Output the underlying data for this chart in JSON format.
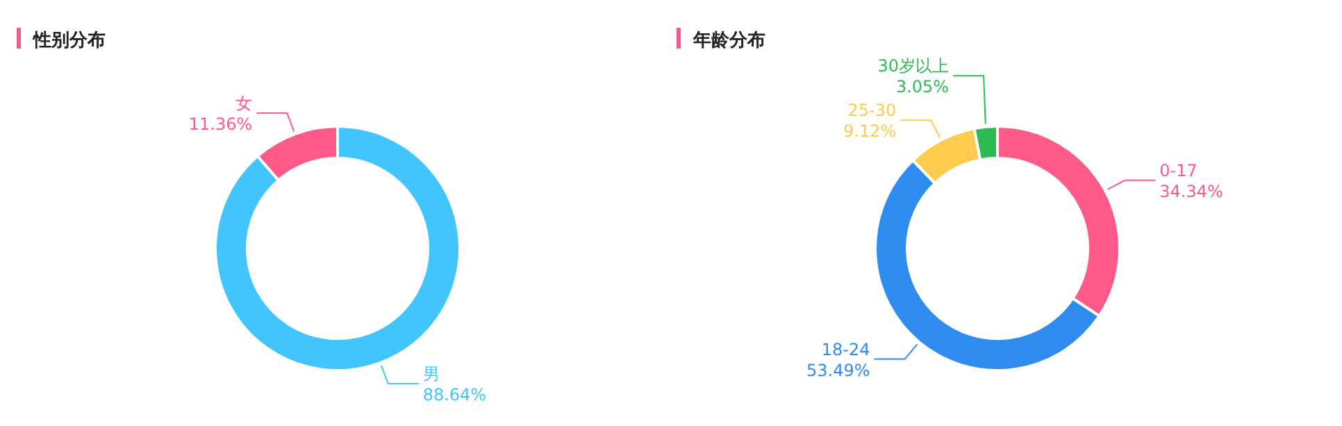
{
  "chart_data": [
    {
      "type": "donut",
      "title": "性别分布",
      "categories": [
        "男",
        "女"
      ],
      "values": [
        88.64,
        11.36
      ],
      "colors": [
        "#42c5fd",
        "#fe5a87"
      ],
      "value_labels": [
        "88.64%",
        "11.36%"
      ]
    },
    {
      "type": "donut",
      "title": "年龄分布",
      "categories": [
        "0-17",
        "18-24",
        "25-30",
        "30岁以上"
      ],
      "values": [
        34.34,
        53.49,
        9.12,
        3.05
      ],
      "colors": [
        "#fe5a87",
        "#2e8cf0",
        "#fecb4e",
        "#2dbb53"
      ],
      "value_labels": [
        "34.34%",
        "53.49%",
        "9.12%",
        "3.05%"
      ]
    }
  ]
}
